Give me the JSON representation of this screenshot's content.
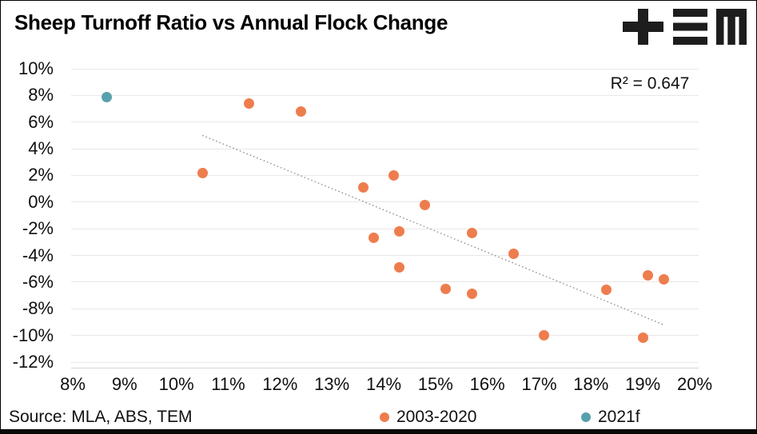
{
  "header": {
    "title": "Sheep Turnoff Ratio vs Annual Flock Change",
    "logo_name": "TEM"
  },
  "footer": {
    "source": "Source: MLA, ABS, TEM"
  },
  "colors": {
    "series_2003_2020": "#EE7D4E",
    "series_2021f": "#57A1AC",
    "gridline": "#e8e8e8",
    "trendline": "#8C8C8C",
    "logo": "#1d1d1d"
  },
  "chart_data": {
    "type": "scatter",
    "title": "Sheep Turnoff Ratio vs Annual Flock Change",
    "xlabel": "",
    "ylabel": "",
    "xlim": [
      8,
      20
    ],
    "ylim": [
      -12,
      10
    ],
    "grid": "horizontal",
    "legend_position": "bottom",
    "annotation": "R² = 0.647",
    "r_squared": 0.647,
    "x_tick_values": [
      8,
      9,
      10,
      11,
      12,
      13,
      14,
      15,
      16,
      17,
      18,
      19,
      20
    ],
    "x_tick_labels": [
      "8%",
      "9%",
      "10%",
      "11%",
      "12%",
      "13%",
      "14%",
      "15%",
      "16%",
      "17%",
      "18%",
      "19%",
      "20%"
    ],
    "y_tick_values": [
      10,
      8,
      6,
      4,
      2,
      0,
      -2,
      -4,
      -6,
      -8,
      -10,
      -12
    ],
    "y_tick_labels": [
      "10%",
      "8%",
      "6%",
      "4%",
      "2%",
      "0%",
      "-2%",
      "-4%",
      "-6%",
      "-8%",
      "-10%",
      "-12%"
    ],
    "series": [
      {
        "name": "2003-2020",
        "color": "#EE7D4E",
        "points": [
          [
            10.5,
            2.2
          ],
          [
            11.4,
            7.4
          ],
          [
            12.4,
            6.8
          ],
          [
            13.6,
            1.1
          ],
          [
            13.8,
            -2.7
          ],
          [
            14.2,
            2.0
          ],
          [
            14.3,
            -2.2
          ],
          [
            14.3,
            -4.9
          ],
          [
            14.8,
            -0.2
          ],
          [
            15.2,
            -6.5
          ],
          [
            15.7,
            -2.3
          ],
          [
            15.7,
            -6.9
          ],
          [
            16.5,
            -3.9
          ],
          [
            17.1,
            -10.0
          ],
          [
            18.3,
            -6.6
          ],
          [
            19.0,
            -10.2
          ],
          [
            19.1,
            -5.5
          ],
          [
            19.4,
            -5.8
          ]
        ]
      },
      {
        "name": "2021f",
        "color": "#57A1AC",
        "points": [
          [
            8.65,
            7.9
          ]
        ]
      }
    ],
    "trendline": {
      "start": [
        10.5,
        5.0
      ],
      "end": [
        19.4,
        -9.2
      ],
      "style": "dotted",
      "color": "#8C8C8C"
    }
  }
}
